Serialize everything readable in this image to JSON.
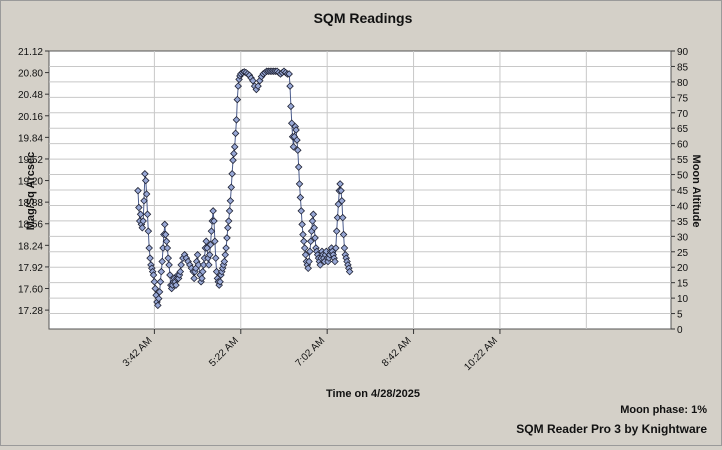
{
  "chart_data": {
    "type": "line",
    "title": "SQM Readings",
    "xlabel": "Time on 4/28/2025",
    "ylabel": "Mag/Sq Arcsec",
    "y2label": "Moon Altitude",
    "x_range_minutes": [
      100,
      820
    ],
    "x_ticks": [
      {
        "label": "3:42 AM",
        "minutes": 222
      },
      {
        "label": "5:22 AM",
        "minutes": 322
      },
      {
        "label": "7:02 AM",
        "minutes": 422
      },
      {
        "label": "8:42 AM",
        "minutes": 522
      },
      {
        "label": "10:22 AM",
        "minutes": 622
      }
    ],
    "x_grid_minutes": [
      222,
      322,
      422,
      522,
      622,
      722,
      822
    ],
    "ylim": [
      17.0,
      21.12
    ],
    "y_ticks": [
      17.28,
      17.6,
      17.92,
      18.24,
      18.56,
      18.88,
      19.2,
      19.52,
      19.84,
      20.16,
      20.48,
      20.8,
      21.12
    ],
    "y2lim": [
      0,
      90
    ],
    "y2_ticks": [
      0,
      5,
      10,
      15,
      20,
      25,
      30,
      35,
      40,
      45,
      50,
      55,
      60,
      65,
      70,
      75,
      80,
      85,
      90
    ],
    "grid": true,
    "series": [
      {
        "name": "",
        "color": "#4a5b8c",
        "marker_fill": "#98a8d6",
        "points": [
          [
            203,
            19.05
          ],
          [
            204,
            18.8
          ],
          [
            205,
            18.6
          ],
          [
            206,
            18.7
          ],
          [
            207,
            18.55
          ],
          [
            208,
            18.5
          ],
          [
            209,
            18.6
          ],
          [
            210,
            18.9
          ],
          [
            211,
            19.3
          ],
          [
            212,
            19.2
          ],
          [
            213,
            19.0
          ],
          [
            214,
            18.7
          ],
          [
            215,
            18.45
          ],
          [
            216,
            18.2
          ],
          [
            217,
            18.05
          ],
          [
            218,
            17.95
          ],
          [
            219,
            17.9
          ],
          [
            220,
            17.85
          ],
          [
            221,
            17.8
          ],
          [
            222,
            17.7
          ],
          [
            223,
            17.6
          ],
          [
            224,
            17.5
          ],
          [
            225,
            17.4
          ],
          [
            226,
            17.35
          ],
          [
            227,
            17.45
          ],
          [
            228,
            17.55
          ],
          [
            229,
            17.7
          ],
          [
            230,
            17.85
          ],
          [
            231,
            18.0
          ],
          [
            232,
            18.2
          ],
          [
            233,
            18.4
          ],
          [
            234,
            18.55
          ],
          [
            235,
            18.4
          ],
          [
            236,
            18.3
          ],
          [
            237,
            18.2
          ],
          [
            238,
            18.05
          ],
          [
            239,
            17.95
          ],
          [
            240,
            17.8
          ],
          [
            241,
            17.65
          ],
          [
            242,
            17.6
          ],
          [
            243,
            17.65
          ],
          [
            244,
            17.7
          ],
          [
            245,
            17.75
          ],
          [
            246,
            17.7
          ],
          [
            247,
            17.65
          ],
          [
            248,
            17.75
          ],
          [
            249,
            17.8
          ],
          [
            250,
            17.75
          ],
          [
            251,
            17.8
          ],
          [
            252,
            17.85
          ],
          [
            253,
            17.95
          ],
          [
            255,
            18.05
          ],
          [
            257,
            18.1
          ],
          [
            259,
            18.05
          ],
          [
            261,
            18.0
          ],
          [
            263,
            17.95
          ],
          [
            265,
            17.9
          ],
          [
            267,
            17.85
          ],
          [
            268,
            17.75
          ],
          [
            269,
            17.85
          ],
          [
            270,
            17.9
          ],
          [
            271,
            18.0
          ],
          [
            272,
            18.1
          ],
          [
            273,
            17.95
          ],
          [
            275,
            17.8
          ],
          [
            276,
            17.7
          ],
          [
            277,
            17.75
          ],
          [
            278,
            17.85
          ],
          [
            279,
            17.95
          ],
          [
            280,
            18.05
          ],
          [
            281,
            18.2
          ],
          [
            282,
            18.3
          ],
          [
            283,
            18.2
          ],
          [
            284,
            18.05
          ],
          [
            285,
            17.95
          ],
          [
            286,
            18.1
          ],
          [
            287,
            18.25
          ],
          [
            288,
            18.45
          ],
          [
            289,
            18.6
          ],
          [
            290,
            18.75
          ],
          [
            291,
            18.6
          ],
          [
            292,
            18.3
          ],
          [
            293,
            18.05
          ],
          [
            294,
            17.85
          ],
          [
            295,
            17.75
          ],
          [
            296,
            17.7
          ],
          [
            297,
            17.65
          ],
          [
            298,
            17.7
          ],
          [
            299,
            17.8
          ],
          [
            300,
            17.85
          ],
          [
            301,
            17.9
          ],
          [
            302,
            17.95
          ],
          [
            303,
            18.0
          ],
          [
            304,
            18.1
          ],
          [
            305,
            18.2
          ],
          [
            306,
            18.35
          ],
          [
            307,
            18.5
          ],
          [
            308,
            18.6
          ],
          [
            309,
            18.75
          ],
          [
            310,
            18.9
          ],
          [
            311,
            19.1
          ],
          [
            312,
            19.3
          ],
          [
            313,
            19.5
          ],
          [
            314,
            19.6
          ],
          [
            315,
            19.7
          ],
          [
            316,
            19.9
          ],
          [
            317,
            20.1
          ],
          [
            318,
            20.4
          ],
          [
            319,
            20.6
          ],
          [
            320,
            20.7
          ],
          [
            321,
            20.75
          ],
          [
            322,
            20.78
          ],
          [
            324,
            20.8
          ],
          [
            326,
            20.81
          ],
          [
            328,
            20.8
          ],
          [
            330,
            20.78
          ],
          [
            332,
            20.76
          ],
          [
            334,
            20.72
          ],
          [
            336,
            20.68
          ],
          [
            338,
            20.6
          ],
          [
            340,
            20.55
          ],
          [
            342,
            20.6
          ],
          [
            344,
            20.68
          ],
          [
            346,
            20.74
          ],
          [
            348,
            20.78
          ],
          [
            350,
            20.8
          ],
          [
            352,
            20.82
          ],
          [
            354,
            20.82
          ],
          [
            356,
            20.82
          ],
          [
            358,
            20.82
          ],
          [
            360,
            20.82
          ],
          [
            362,
            20.82
          ],
          [
            364,
            20.82
          ],
          [
            366,
            20.8
          ],
          [
            368,
            20.78
          ],
          [
            370,
            20.8
          ],
          [
            372,
            20.82
          ],
          [
            374,
            20.8
          ],
          [
            376,
            20.78
          ],
          [
            378,
            20.78
          ],
          [
            379,
            20.6
          ],
          [
            380,
            20.3
          ],
          [
            381,
            20.05
          ],
          [
            382,
            19.85
          ],
          [
            383,
            19.7
          ],
          [
            384,
            19.85
          ],
          [
            385,
            20.0
          ],
          [
            386,
            19.95
          ],
          [
            387,
            19.8
          ],
          [
            388,
            19.65
          ],
          [
            389,
            19.4
          ],
          [
            390,
            19.15
          ],
          [
            391,
            18.95
          ],
          [
            392,
            18.75
          ],
          [
            393,
            18.55
          ],
          [
            394,
            18.4
          ],
          [
            395,
            18.3
          ],
          [
            396,
            18.2
          ],
          [
            397,
            18.1
          ],
          [
            398,
            18.0
          ],
          [
            399,
            17.95
          ],
          [
            400,
            17.9
          ],
          [
            401,
            18.0
          ],
          [
            402,
            18.15
          ],
          [
            403,
            18.3
          ],
          [
            404,
            18.45
          ],
          [
            405,
            18.6
          ],
          [
            406,
            18.7
          ],
          [
            407,
            18.5
          ],
          [
            408,
            18.35
          ],
          [
            409,
            18.2
          ],
          [
            410,
            18.15
          ],
          [
            411,
            18.1
          ],
          [
            412,
            18.05
          ],
          [
            413,
            18.0
          ],
          [
            414,
            17.95
          ],
          [
            415,
            18.05
          ],
          [
            416,
            18.15
          ],
          [
            417,
            18.1
          ],
          [
            418,
            18.05
          ],
          [
            419,
            18.0
          ],
          [
            420,
            18.1
          ],
          [
            421,
            18.15
          ],
          [
            422,
            18.05
          ],
          [
            423,
            18.0
          ],
          [
            424,
            18.05
          ],
          [
            425,
            18.1
          ],
          [
            426,
            18.15
          ],
          [
            427,
            18.2
          ],
          [
            428,
            18.15
          ],
          [
            429,
            18.1
          ],
          [
            430,
            18.05
          ],
          [
            431,
            18.0
          ],
          [
            432,
            18.2
          ],
          [
            433,
            18.45
          ],
          [
            434,
            18.65
          ],
          [
            435,
            18.85
          ],
          [
            436,
            19.05
          ],
          [
            437,
            19.15
          ],
          [
            438,
            19.05
          ],
          [
            439,
            18.9
          ],
          [
            440,
            18.65
          ],
          [
            441,
            18.4
          ],
          [
            442,
            18.2
          ],
          [
            443,
            18.1
          ],
          [
            444,
            18.05
          ],
          [
            445,
            18.0
          ],
          [
            446,
            17.95
          ],
          [
            447,
            17.9
          ],
          [
            448,
            17.85
          ]
        ]
      }
    ],
    "footer": {
      "moon_phase": "Moon phase: 1%",
      "brand": "SQM Reader Pro 3 by Knightware"
    }
  }
}
